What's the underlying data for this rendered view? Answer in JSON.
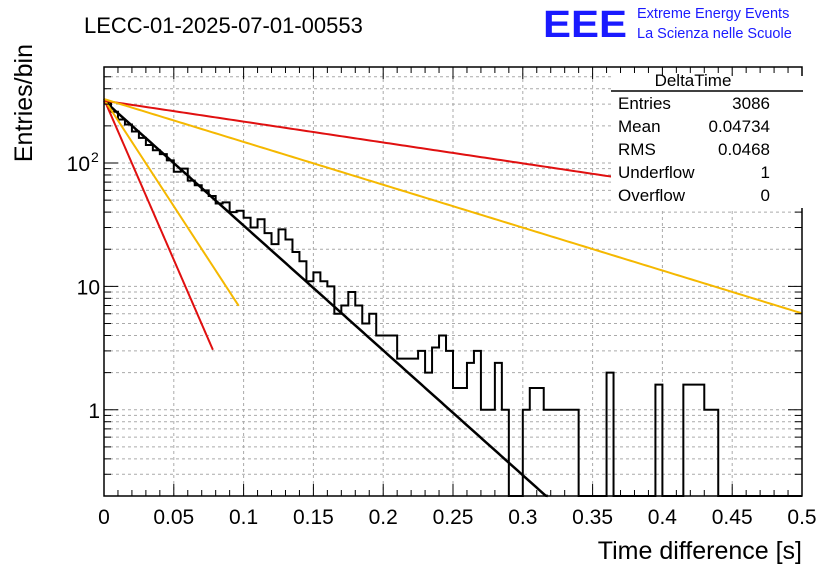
{
  "chart_data": {
    "type": "line",
    "title": "LECC-01-2025-07-01-00553",
    "xlabel": "Time difference [s]",
    "ylabel": "Entries/bin",
    "xlim": [
      0,
      0.5
    ],
    "ylim": [
      0.2,
      600
    ],
    "y_scale": "log",
    "grid": true,
    "x_ticks": [
      "0",
      "0.05",
      "0.1",
      "0.15",
      "0.2",
      "0.25",
      "0.3",
      "0.35",
      "0.4",
      "0.45",
      "0.5"
    ],
    "y_ticks": [
      {
        "value": 1,
        "label": "1"
      },
      {
        "value": 10,
        "label": "10"
      },
      {
        "value": 100,
        "label": "10",
        "exp": "2"
      }
    ],
    "histogram": {
      "bin_width": 0.005,
      "counts": [
        310,
        260,
        225,
        205,
        180,
        160,
        140,
        127,
        118,
        105,
        85,
        90,
        72,
        66,
        60,
        54,
        47,
        48,
        40,
        41,
        36,
        30,
        35,
        27,
        22,
        29,
        24,
        19,
        16,
        11,
        13,
        11,
        10,
        6,
        7,
        9,
        7,
        5,
        6,
        4,
        4,
        4,
        2.6,
        2.6,
        2.6,
        3,
        2,
        3.2,
        4,
        3,
        1.5,
        1.5,
        2.4,
        3,
        1,
        1,
        2.4,
        1,
        0.1,
        0.1,
        1,
        1.5,
        1.5,
        1,
        1,
        1,
        1,
        1,
        0.1,
        0.1,
        0.1,
        0.1,
        2,
        0.1,
        0.1,
        0.1,
        0.1,
        0.1,
        0.1,
        1.6,
        0.1,
        0.1,
        0.1,
        1.6,
        1.6,
        1.6,
        1,
        1,
        0.1,
        0.1,
        0.1,
        0.1,
        0.1,
        0.1,
        0.1,
        0.1,
        0.1,
        0.1,
        0.1,
        0.1,
        0.1,
        0.1,
        0.1,
        0.1,
        0.1,
        0.1,
        0.1,
        0.1,
        0.1,
        0.1,
        0.1,
        0.1,
        0.1,
        0.1,
        0.1,
        0.1,
        0.1,
        0.1,
        0.1,
        0.1,
        0.1,
        0.1,
        0.1,
        0.1,
        0.1,
        0.1,
        0.1,
        0.1,
        0.1,
        0.1,
        0.1,
        0.1,
        0.1,
        0.1,
        0.1,
        0.1,
        0.1,
        0.1,
        0.1,
        0.1,
        0.1,
        0.1,
        0.1,
        0.1,
        0.1,
        0.1,
        0.1,
        0.1,
        0.1,
        0.1,
        0.1,
        0.1,
        0.1,
        0.1,
        0.1,
        0.1,
        0.1,
        0.1,
        0.1,
        0.1,
        0.1,
        0.1,
        0.1,
        0.1,
        0.1,
        0.1,
        0.1,
        0.1,
        0.1,
        0.1,
        0.1,
        0.1,
        0.1,
        0.1,
        0.1,
        0.1,
        0.1,
        0.1,
        0.1,
        0.1,
        0.1,
        0.1,
        0.1,
        0.1,
        0.1,
        0.1,
        0.1,
        0.1,
        0.1,
        0.1,
        0.1,
        0.1,
        0.1,
        0.1,
        0.1,
        0.1,
        0.1,
        0.1,
        0.1,
        0.1,
        0.1,
        0.1,
        0.1,
        0.1,
        0.1,
        0.1,
        0.1,
        0.1,
        0.1,
        0.1,
        0.1,
        0.1,
        0.1,
        0.1,
        0.1,
        0.1,
        0.1,
        0.1,
        0.1,
        0.1,
        0.1,
        0.1,
        0.1,
        0.1,
        0.1,
        0.1,
        0.1,
        0.1,
        0.1,
        0.1,
        0.1,
        0.1,
        0.1,
        0.1,
        0.1,
        0.1,
        0.1,
        0.1,
        0.1,
        0.1,
        0.1,
        0.1,
        0.1,
        0.1,
        0.1,
        0.1
      ],
      "color": "#000000"
    },
    "series": [
      {
        "amplitude": 320,
        "decay": 23.3,
        "x_end": 0.355,
        "color": "#000000"
      },
      {
        "amplitude": 330,
        "decay": 60,
        "x_end": 0.078,
        "color": "#e01010"
      },
      {
        "amplitude": 330,
        "decay": 40,
        "x_end": 0.0965,
        "color": "#f5b800"
      },
      {
        "amplitude": 320,
        "decay": 3.9,
        "x_end": 0.5,
        "color": "#e01010"
      },
      {
        "amplitude": 330,
        "decay": 8.0,
        "x_end": 0.5,
        "color": "#f5b800"
      }
    ]
  },
  "stats": {
    "title": "DeltaTime",
    "rows": [
      {
        "label": "Entries",
        "value": "3086"
      },
      {
        "label": "Mean",
        "value": "0.04734"
      },
      {
        "label": "RMS",
        "value": "0.0468"
      },
      {
        "label": "Underflow",
        "value": "1"
      },
      {
        "label": "Overflow",
        "value": "0"
      }
    ]
  },
  "logo": {
    "text": "EEE",
    "line1": "Extreme Energy Events",
    "line2": "La Scienza nelle Scuole",
    "color": "#1a1aff"
  }
}
